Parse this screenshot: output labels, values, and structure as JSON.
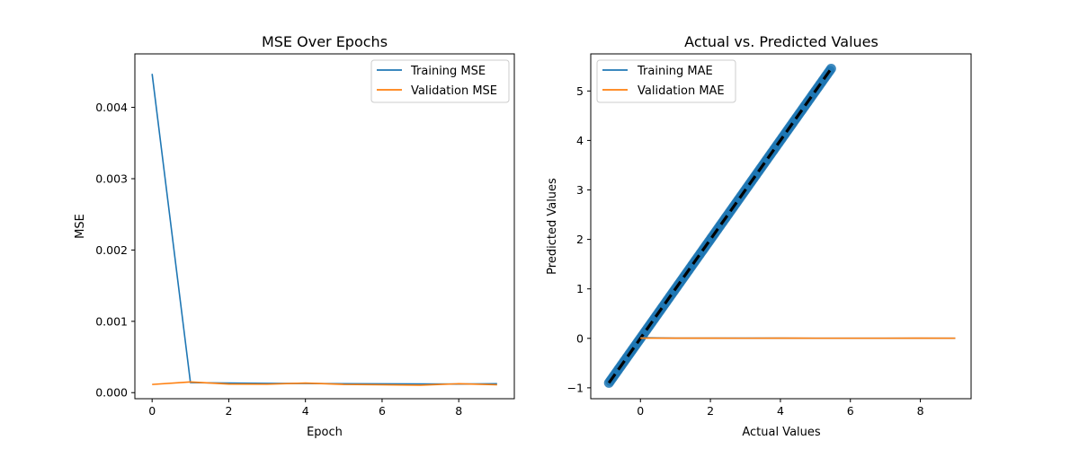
{
  "chart_data": [
    {
      "type": "line",
      "title": "MSE Over Epochs",
      "xlabel": "Epoch",
      "ylabel": "MSE",
      "xlim": [
        -0.45,
        9.45
      ],
      "ylim": [
        -8.5e-05,
        0.00475
      ],
      "xticks": [
        0,
        2,
        4,
        6,
        8
      ],
      "xtick_labels": [
        "0",
        "2",
        "4",
        "6",
        "8"
      ],
      "yticks": [
        0,
        0.001,
        0.002,
        0.003,
        0.004
      ],
      "ytick_labels": [
        "0.000",
        "0.001",
        "0.002",
        "0.003",
        "0.004"
      ],
      "legend_position": "top-right",
      "x": [
        0,
        1,
        2,
        3,
        4,
        5,
        6,
        7,
        8,
        9
      ],
      "series": [
        {
          "name": "Training MSE",
          "color": "#1f77b4",
          "values": [
            0.00447,
            0.00014,
            0.000135,
            0.00013,
            0.000128,
            0.000126,
            0.000124,
            0.000122,
            0.00012,
            0.000125
          ]
        },
        {
          "name": "Validation MSE",
          "color": "#ff7f0e",
          "values": [
            0.000115,
            0.00015,
            0.00012,
            0.000118,
            0.000135,
            0.000115,
            0.00011,
            0.000105,
            0.000125,
            0.00011
          ]
        }
      ]
    },
    {
      "type": "scatter",
      "title": "Actual vs. Predicted Values",
      "xlabel": "Actual Values",
      "ylabel": "Predicted Values",
      "xlim": [
        -1.42,
        9.45
      ],
      "ylim": [
        -1.22,
        5.75
      ],
      "xticks": [
        0,
        2,
        4,
        6,
        8
      ],
      "xtick_labels": [
        "0",
        "2",
        "4",
        "6",
        "8"
      ],
      "yticks": [
        -1,
        0,
        1,
        2,
        3,
        4,
        5
      ],
      "ytick_labels": [
        "−1",
        "0",
        "1",
        "2",
        "3",
        "4",
        "5"
      ],
      "legend_position": "top-left",
      "scatter": {
        "x_range": [
          -0.9,
          5.45
        ],
        "color": "#1f77b4",
        "description": "predicted equals actual"
      },
      "identity_line": {
        "x": [
          -0.9,
          5.45
        ],
        "y": [
          -0.9,
          5.45
        ],
        "color": "#000000",
        "style": "dashed"
      },
      "series": [
        {
          "name": "Training MAE",
          "color": "#1f77b4",
          "x": [
            0,
            1,
            2,
            3,
            4,
            5,
            6,
            7,
            8,
            9
          ],
          "values": [
            0.014,
            0.0035,
            0.0033,
            0.0032,
            0.0032,
            0.0031,
            0.0031,
            0.003,
            0.003,
            0.003
          ]
        },
        {
          "name": "Validation MAE",
          "color": "#ff7f0e",
          "x": [
            0,
            1,
            2,
            3,
            4,
            5,
            6,
            7,
            8,
            9
          ],
          "values": [
            0.0034,
            0.0036,
            0.0032,
            0.0031,
            0.0033,
            0.0031,
            0.003,
            0.003,
            0.0032,
            0.003
          ]
        }
      ]
    }
  ]
}
